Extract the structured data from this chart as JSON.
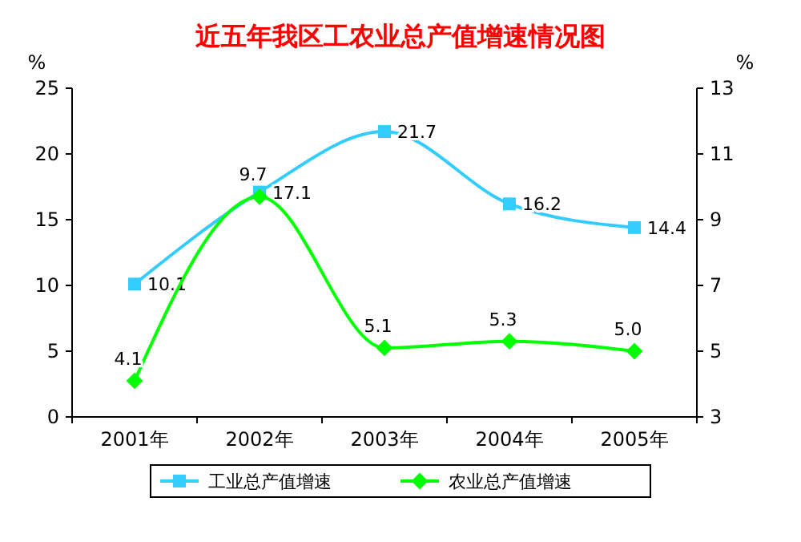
{
  "chart_data": {
    "type": "line",
    "title": "近五年我区工农业总产值增速情况图",
    "ylabel": "%",
    "y2label": "%",
    "categories": [
      "2001年",
      "2002年",
      "2003年",
      "2004年",
      "2005年"
    ],
    "series": [
      {
        "name": "工业总产值增速",
        "color": "#33ccff",
        "marker": "square",
        "values": [
          10.1,
          17.1,
          21.7,
          16.2,
          14.4
        ],
        "value_labels": [
          "10.1",
          "17.1",
          "21.7",
          "16.2",
          "14.4"
        ]
      },
      {
        "name": "农业总产值增速",
        "color": "#00ff00",
        "marker": "diamond",
        "axis": "y2",
        "values": [
          4.1,
          9.7,
          5.1,
          5.3,
          5.0
        ],
        "value_labels": [
          "4.1",
          "9.7",
          "5.1",
          "5.3",
          "5.0"
        ]
      }
    ],
    "ylim": [
      0,
      25
    ],
    "yticks": [
      0,
      5,
      10,
      15,
      20,
      25
    ],
    "y2lim": [
      3,
      13
    ],
    "y2ticks": [
      3,
      5,
      7,
      9,
      11,
      13
    ],
    "legend": "bottom",
    "grid": false,
    "line_style": "solid"
  }
}
